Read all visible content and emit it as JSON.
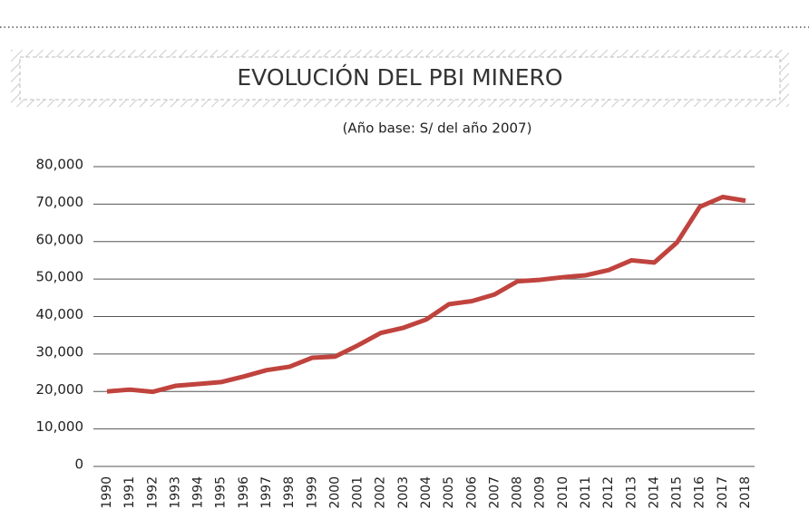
{
  "chart_data": {
    "type": "line",
    "title": "EVOLUCIÓN DEL PBI MINERO",
    "subtitle": "(Año base: S/ del año 2007)",
    "categories": [
      "1990",
      "1991",
      "1992",
      "1993",
      "1994",
      "1995",
      "1996",
      "1997",
      "1998",
      "1999",
      "2000",
      "2001",
      "2002",
      "2003",
      "2004",
      "2005",
      "2006",
      "2007",
      "2008",
      "2009",
      "2010",
      "2011",
      "2012",
      "2013",
      "2014",
      "2015",
      "2016",
      "2017",
      "2018"
    ],
    "series": [
      {
        "name": "PBI minero",
        "color": "#c0433e",
        "values": [
          20000,
          20500,
          19900,
          21500,
          22000,
          22500,
          24000,
          25700,
          26600,
          29000,
          29300,
          32300,
          35600,
          37000,
          39200,
          43300,
          44100,
          45900,
          49400,
          49800,
          50500,
          51000,
          52400,
          55000,
          54400,
          59800,
          69300,
          71900,
          70900
        ]
      }
    ],
    "ylim": [
      0,
      80000
    ],
    "yticks": [
      0,
      {
        "value": 10000,
        "label": "10,000"
      },
      {
        "value": 20000,
        "label": "20,000"
      },
      {
        "value": 30000,
        "label": "30,000"
      },
      {
        "value": 40000,
        "label": "40,000"
      },
      {
        "value": 50000,
        "label": "50,000"
      },
      {
        "value": 60000,
        "label": "60,000"
      },
      {
        "value": 70000,
        "label": "70,000"
      },
      {
        "value": 80000,
        "label": "80,000"
      }
    ],
    "grid": true
  }
}
